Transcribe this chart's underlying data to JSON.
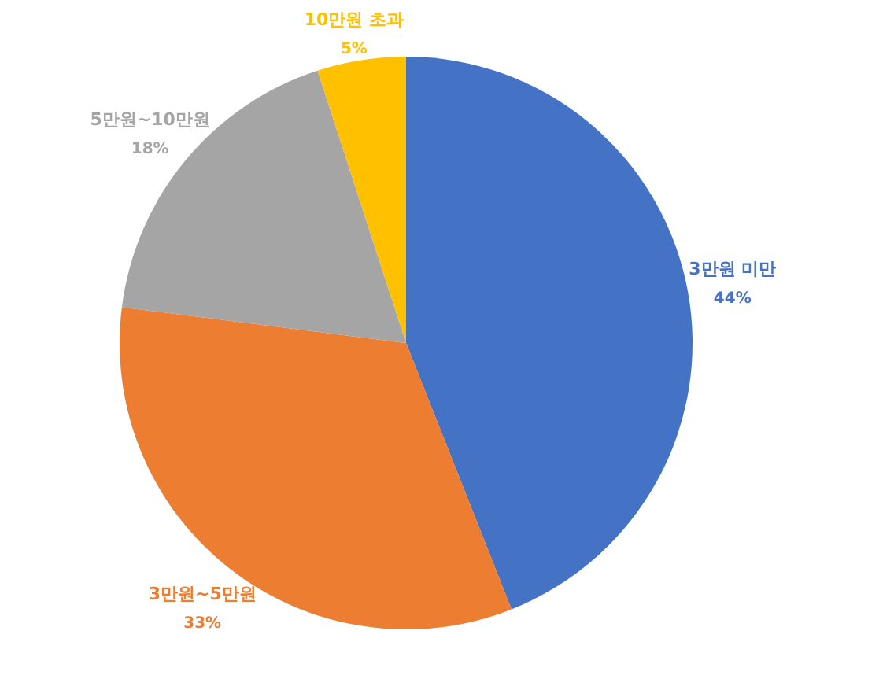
{
  "chart_data": {
    "type": "pie",
    "categories": [
      "3만원 미만",
      "3만원~5만원",
      "5만원~10만원",
      "10만원 초과"
    ],
    "values": [
      44,
      33,
      18,
      5
    ],
    "colors": [
      "#4472c4",
      "#ed7d31",
      "#a5a5a5",
      "#ffc000"
    ],
    "value_labels": [
      "44%",
      "33%",
      "18%",
      "5%"
    ]
  }
}
